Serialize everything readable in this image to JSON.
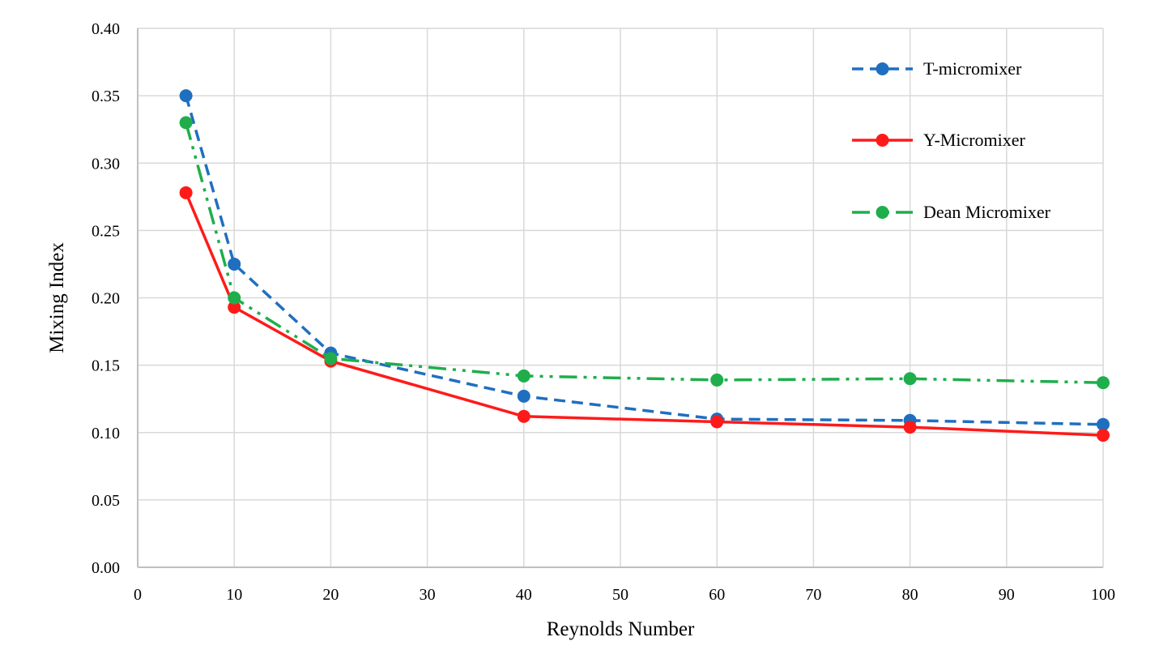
{
  "chart_data": {
    "type": "line",
    "title": "",
    "xlabel": "Reynolds Number",
    "ylabel": "Mixing Index",
    "xlim": [
      0,
      100
    ],
    "ylim": [
      0,
      0.4
    ],
    "xticks": [
      0,
      10,
      20,
      30,
      40,
      50,
      60,
      70,
      80,
      90,
      100
    ],
    "yticks": [
      0,
      0.05,
      0.1,
      0.15,
      0.2,
      0.25,
      0.3,
      0.35,
      0.4
    ],
    "xtick_labels": [
      "0",
      "10",
      "20",
      "30",
      "40",
      "50",
      "60",
      "70",
      "80",
      "90",
      "100"
    ],
    "ytick_labels": [
      "0.00",
      "0.05",
      "0.10",
      "0.15",
      "0.20",
      "0.25",
      "0.30",
      "0.35",
      "0.40"
    ],
    "grid": true,
    "legend_position": "top-right",
    "x": [
      5,
      10,
      20,
      40,
      60,
      80,
      100
    ],
    "series": [
      {
        "name": "T-micromixer",
        "values": [
          0.35,
          0.225,
          0.159,
          0.127,
          0.11,
          0.109,
          0.106
        ],
        "color": "#1f6fc0",
        "line_style": "dashed"
      },
      {
        "name": "Y-Micromixer",
        "values": [
          0.278,
          0.193,
          0.153,
          0.112,
          0.108,
          0.104,
          0.098
        ],
        "color": "#ff1a1a",
        "line_style": "solid"
      },
      {
        "name": "Dean Micromixer",
        "values": [
          0.33,
          0.2,
          0.155,
          0.142,
          0.139,
          0.14,
          0.137
        ],
        "color": "#1fae4b",
        "line_style": "dash-dot-dot"
      }
    ]
  }
}
